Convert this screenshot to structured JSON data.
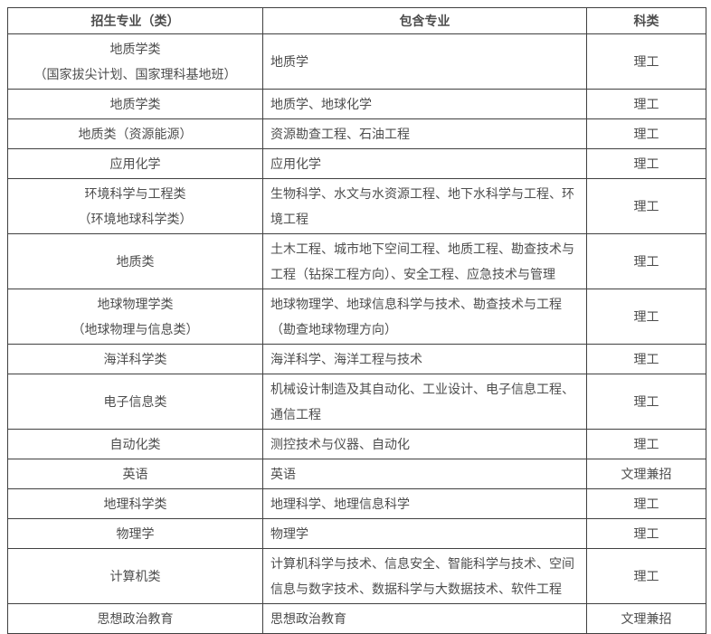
{
  "colors": {
    "border": "#404040",
    "text": "#4d4d4d",
    "background": "#ffffff"
  },
  "table": {
    "columns": [
      {
        "key": "major",
        "label": "招生专业（类）"
      },
      {
        "key": "includes",
        "label": "包含专业"
      },
      {
        "key": "category",
        "label": "科类"
      }
    ],
    "rows": [
      {
        "major_lines": [
          "地质学类",
          "（国家拔尖计划、国家理科基地班）"
        ],
        "includes": "地质学",
        "category": "理工"
      },
      {
        "major_lines": [
          "地质学类"
        ],
        "includes": "地质学、地球化学",
        "category": "理工"
      },
      {
        "major_lines": [
          "地质类（资源能源）"
        ],
        "includes": "资源勘查工程、石油工程",
        "category": "理工"
      },
      {
        "major_lines": [
          "应用化学"
        ],
        "includes": "应用化学",
        "category": "理工"
      },
      {
        "major_lines": [
          "环境科学与工程类",
          "（环境地球科学类）"
        ],
        "includes": "生物科学、水文与水资源工程、地下水科学与工程、环境工程",
        "category": "理工"
      },
      {
        "major_lines": [
          "地质类"
        ],
        "includes": "土木工程、城市地下空间工程、地质工程、勘查技术与工程（钻探工程方向）、安全工程、应急技术与管理",
        "category": "理工"
      },
      {
        "major_lines": [
          "地球物理学类",
          "（地球物理与信息类）"
        ],
        "includes": "地球物理学、地球信息科学与技术、勘查技术与工程（勘查地球物理方向）",
        "category": "理工"
      },
      {
        "major_lines": [
          "海洋科学类"
        ],
        "includes": "海洋科学、海洋工程与技术",
        "category": "理工"
      },
      {
        "major_lines": [
          "电子信息类"
        ],
        "includes": "机械设计制造及其自动化、工业设计、电子信息工程、通信工程",
        "category": "理工"
      },
      {
        "major_lines": [
          "自动化类"
        ],
        "includes": "测控技术与仪器、自动化",
        "category": "理工"
      },
      {
        "major_lines": [
          "英语"
        ],
        "includes": "英语",
        "category": "文理兼招"
      },
      {
        "major_lines": [
          "地理科学类"
        ],
        "includes": "地理科学、地理信息科学",
        "category": "理工"
      },
      {
        "major_lines": [
          "物理学"
        ],
        "includes": "物理学",
        "category": "理工"
      },
      {
        "major_lines": [
          "计算机类"
        ],
        "includes": "计算机科学与技术、信息安全、智能科学与技术、空间信息与数字技术、数据科学与大数据技术、软件工程",
        "category": "理工"
      },
      {
        "major_lines": [
          "思想政治教育"
        ],
        "includes": "思想政治教育",
        "category": "文理兼招"
      }
    ]
  }
}
